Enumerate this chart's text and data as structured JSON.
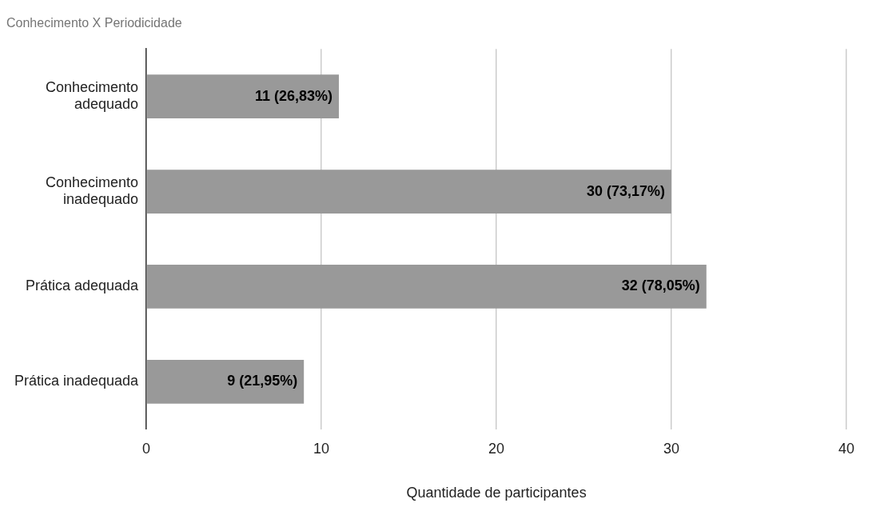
{
  "chart_data": {
    "type": "bar",
    "orientation": "horizontal",
    "title": "Conhecimento X Periodicidade",
    "xlabel": "Quantidade de participantes",
    "categories": [
      "Conhecimento adequado",
      "Conhecimento inadequado",
      "Prática adequada",
      "Prática inadequada"
    ],
    "values": [
      11,
      30,
      32,
      9
    ],
    "color": "#999999",
    "value_labels": [
      "11 (26,83%)",
      "30 (73,17%)",
      "32 (78,05%)",
      "9 (21,95%)"
    ],
    "xlim": [
      0,
      40
    ],
    "xticks": [
      0,
      10,
      20,
      30,
      40
    ],
    "grid": "x",
    "legend": false
  }
}
